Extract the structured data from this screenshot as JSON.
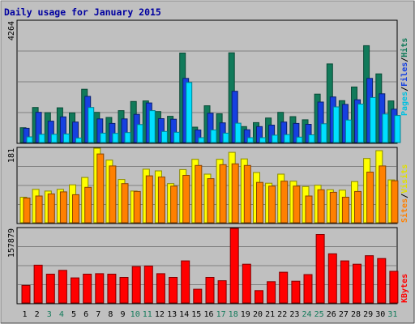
{
  "chart_data": [
    {
      "type": "bar",
      "title": "Daily usage for January 2015",
      "categories": [
        "1",
        "2",
        "3",
        "4",
        "5",
        "6",
        "7",
        "8",
        "9",
        "10",
        "11",
        "12",
        "13",
        "14",
        "15",
        "16",
        "17",
        "18",
        "19",
        "20",
        "21",
        "22",
        "23",
        "24",
        "25",
        "26",
        "27",
        "28",
        "29",
        "30",
        "31"
      ],
      "weekend_days": [
        "3",
        "4",
        "10",
        "11",
        "17",
        "18",
        "24",
        "25",
        "31"
      ],
      "ymax_label": "4264",
      "ylim": [
        0,
        4264
      ],
      "y_axis_legend": [
        "Pages",
        "Files",
        "Hits"
      ],
      "series": [
        {
          "name": "Hits",
          "color": "#117a5a",
          "values": [
            520,
            1230,
            1050,
            1220,
            1040,
            1870,
            1060,
            880,
            1120,
            1440,
            1460,
            1090,
            920,
            3140,
            540,
            1290,
            1010,
            3150,
            560,
            700,
            860,
            1060,
            910,
            800,
            1700,
            2760,
            1470,
            1950,
            3400,
            2410,
            1460
          ]
        },
        {
          "name": "Files",
          "color": "#1640e0",
          "values": [
            500,
            1060,
            750,
            900,
            720,
            1620,
            830,
            670,
            830,
            990,
            1390,
            840,
            820,
            2250,
            440,
            1030,
            690,
            1800,
            450,
            560,
            610,
            720,
            670,
            640,
            1420,
            1600,
            1340,
            1500,
            2250,
            1710,
            1170
          ]
        },
        {
          "name": "Pages",
          "color": "#00e0ff",
          "values": [
            200,
            290,
            290,
            300,
            160,
            1230,
            330,
            320,
            350,
            630,
            1120,
            390,
            360,
            2110,
            170,
            440,
            330,
            680,
            170,
            170,
            260,
            280,
            190,
            270,
            660,
            1250,
            790,
            1350,
            1580,
            1000,
            950
          ]
        }
      ]
    },
    {
      "type": "bar",
      "ymax_label": "181",
      "ylim": [
        0,
        181
      ],
      "y_axis_legend": [
        "Sites",
        "Visits"
      ],
      "series": [
        {
          "name": "Visits",
          "color": "#ffff00",
          "values": [
            62,
            81,
            77,
            81,
            92,
            110,
            181,
            152,
            105,
            77,
            130,
            126,
            95,
            129,
            154,
            118,
            154,
            171,
            155,
            122,
            96,
            118,
            101,
            88,
            91,
            80,
            79,
            100,
            156,
            175,
            104
          ]
        },
        {
          "name": "Sites",
          "color": "#ff8000",
          "values": [
            60,
            65,
            70,
            75,
            68,
            86,
            167,
            138,
            95,
            76,
            114,
            111,
            89,
            115,
            139,
            107,
            141,
            143,
            139,
            98,
            89,
            101,
            89,
            65,
            80,
            74,
            62,
            76,
            123,
            138,
            102
          ]
        }
      ]
    },
    {
      "type": "bar",
      "ymax_label": "157879",
      "ylim": [
        0,
        157879
      ],
      "y_axis_legend": [
        "KBytes"
      ],
      "series": [
        {
          "name": "KBytes",
          "color": "#ff0000",
          "values": [
            37000,
            80000,
            61000,
            69000,
            53000,
            61000,
            62000,
            61000,
            54000,
            77000,
            78000,
            62000,
            54000,
            89000,
            29000,
            54000,
            47000,
            157879,
            82000,
            26000,
            45000,
            65000,
            46000,
            60000,
            145000,
            104000,
            89000,
            82000,
            100000,
            94000,
            67000
          ]
        }
      ]
    }
  ]
}
